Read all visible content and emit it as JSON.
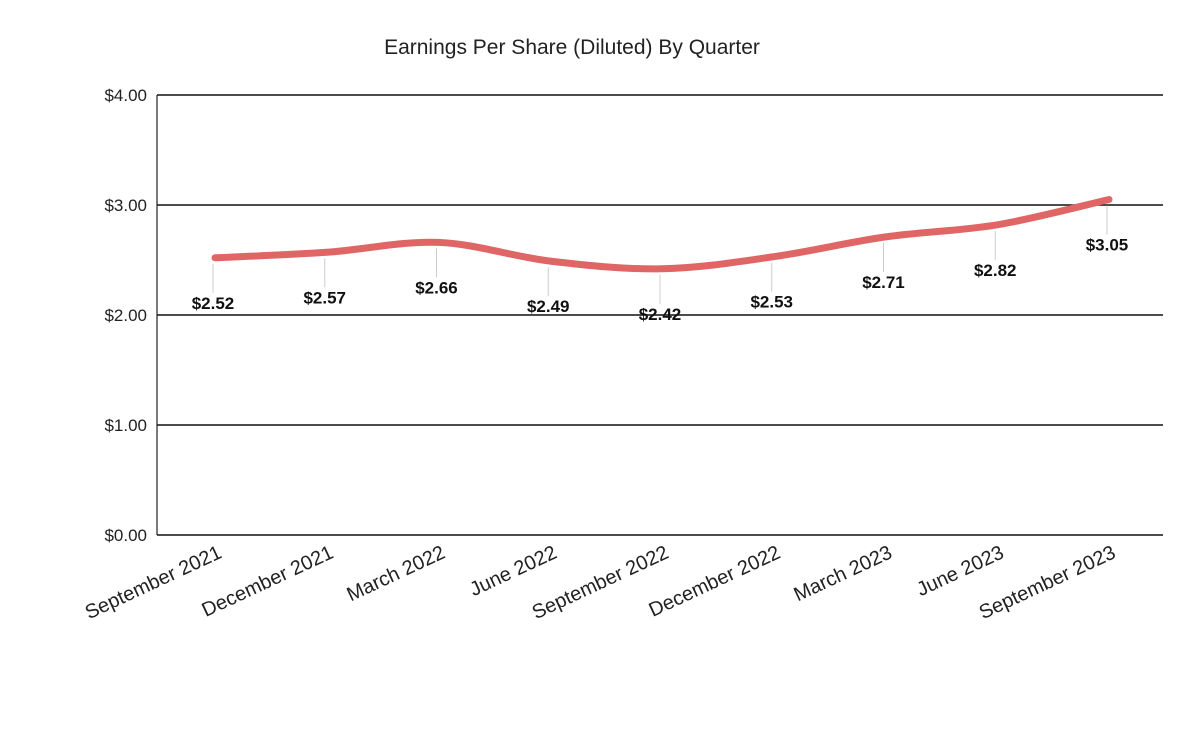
{
  "chart_data": {
    "type": "line",
    "title": "Earnings Per Share (Diluted) By Quarter",
    "xlabel": "",
    "ylabel": "",
    "categories": [
      "September 2021",
      "December 2021",
      "March 2022",
      "June 2022",
      "September 2022",
      "December 2022",
      "March 2023",
      "June 2023",
      "September 2023"
    ],
    "series": [
      {
        "values": [
          2.52,
          2.57,
          2.66,
          2.49,
          2.42,
          2.53,
          2.71,
          2.82,
          3.05
        ],
        "data_labels": [
          "$2.52",
          "$2.57",
          "$2.66",
          "$2.49",
          "$2.42",
          "$2.53",
          "$2.71",
          "$2.82",
          "$3.05"
        ],
        "color": "#e06666"
      }
    ],
    "ylim": [
      0,
      4
    ],
    "yticks": [
      0,
      1,
      2,
      3,
      4
    ],
    "ytick_labels": [
      "$0.00",
      "$1.00",
      "$2.00",
      "$3.00",
      "$4.00"
    ],
    "grid": true,
    "legend": "none"
  }
}
